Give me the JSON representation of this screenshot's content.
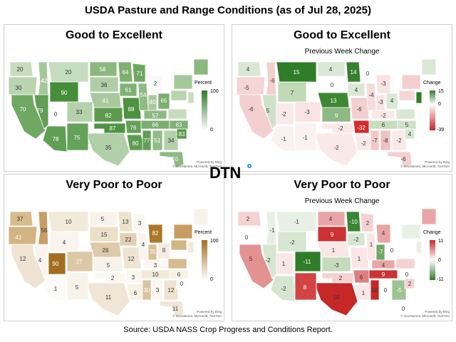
{
  "title": "USDA Pasture and Range Conditions (as of Jul 28, 2025)",
  "source": "Source:  USDA NASS Crop Progress and Conditions Report.",
  "logo": "DTN",
  "credit_line1": "Powered by Bing",
  "credit_line2": "© GeoNames, Microsoft, TomTom",
  "panels": [
    {
      "title": "Good to Excellent",
      "subtitle": "",
      "legend_title": "Percent",
      "legend_max": "100",
      "legend_min": "0",
      "scale": "green",
      "labels": [
        {
          "v": "20",
          "c": "#c6dcbf"
        },
        {
          "v": "30",
          "c": "#b9d4b1"
        },
        {
          "v": "42",
          "c": "#a5c89b"
        },
        {
          "v": "20",
          "c": "#c6dcbf"
        },
        {
          "v": "58",
          "c": "#8ab87f"
        },
        {
          "v": "70",
          "c": "#6fa863"
        },
        {
          "v": "79",
          "c": "#5f9e53"
        },
        {
          "v": "90",
          "c": "#468e3a"
        },
        {
          "v": "0",
          "c": "#ffffff"
        },
        {
          "v": "33",
          "c": "#b4d1ab"
        },
        {
          "v": "36",
          "c": "#b0cea6"
        },
        {
          "v": "41",
          "c": "#a8c99e"
        },
        {
          "v": "82",
          "c": "#5a9b4d"
        },
        {
          "v": "78",
          "c": "#5f9e53"
        },
        {
          "v": "75",
          "c": "#65a259"
        },
        {
          "v": "87",
          "c": "#4e9342"
        },
        {
          "v": "35",
          "c": "#b1cfa8"
        },
        {
          "v": "64",
          "c": "#7cb070"
        },
        {
          "v": "61",
          "c": "#80b274"
        },
        {
          "v": "88",
          "c": "#4c9240"
        },
        {
          "v": "76",
          "c": "#63a157"
        },
        {
          "v": "80",
          "c": "#5c9c50"
        },
        {
          "v": "71",
          "c": "#6ca760"
        },
        {
          "v": "54",
          "c": "#8fbb84"
        },
        {
          "v": "2",
          "c": "#f7faf6"
        },
        {
          "v": "40",
          "c": "#a9ca9f"
        },
        {
          "v": "65",
          "c": "#7aaf6e"
        },
        {
          "v": "57",
          "c": "#8bb980"
        },
        {
          "v": "66",
          "c": "#79ae6d"
        },
        {
          "v": "77",
          "c": "#62a056"
        },
        {
          "v": "51",
          "c": "#93bd88"
        },
        {
          "v": "34",
          "c": "#b3d0aa"
        },
        {
          "v": "55",
          "c": "#8dba82"
        },
        {
          "v": "63",
          "c": "#7eb172"
        },
        {
          "v": "83",
          "c": "#579a4b"
        }
      ]
    },
    {
      "title": "Good to Excellent",
      "subtitle": "Previous Week Change",
      "legend_title": "Change",
      "legend_max": "15",
      "legend_mid": "0",
      "legend_min": "-39",
      "scale": "diverge-green",
      "labels": [
        {
          "v": "4",
          "c": "#d9e8d4"
        },
        {
          "v": "-5",
          "c": "#f6d5d5"
        },
        {
          "v": "-6",
          "c": "#f4cfcf"
        },
        {
          "v": "15",
          "c": "#2f7d28"
        },
        {
          "v": "4",
          "c": "#d9e8d4"
        },
        {
          "v": "-6",
          "c": "#f4cfcf"
        },
        {
          "v": "5",
          "c": "#cfe2c9"
        },
        {
          "v": "7",
          "c": "#c0dab8"
        },
        {
          "v": "-2",
          "c": "#fae9e9"
        },
        {
          "v": "-3",
          "c": "#f9e3e3"
        },
        {
          "v": "0",
          "c": "#ffffff"
        },
        {
          "v": "13",
          "c": "#3e8833"
        },
        {
          "v": "9",
          "c": "#8db982"
        },
        {
          "v": "-1",
          "c": "#fcf1f1"
        },
        {
          "v": "-1",
          "c": "#fcf1f1"
        },
        {
          "v": "-2",
          "c": "#fae9e9"
        },
        {
          "v": "-2",
          "c": "#fae9e9"
        },
        {
          "v": "14",
          "c": "#367f2e"
        },
        {
          "v": "4",
          "c": "#d9e8d4"
        },
        {
          "v": "-6",
          "c": "#f4cfcf"
        },
        {
          "v": "-32",
          "c": "#d52c2c"
        },
        {
          "v": "-2",
          "c": "#fae9e9"
        },
        {
          "v": "0",
          "c": "#ffffff"
        },
        {
          "v": "-4",
          "c": "#f7dcdc"
        },
        {
          "v": "-3",
          "c": "#f9e3e3"
        },
        {
          "v": "-3",
          "c": "#f9e3e3"
        },
        {
          "v": "4",
          "c": "#d9e8d4"
        },
        {
          "v": "-2",
          "c": "#fae9e9"
        },
        {
          "v": "6",
          "c": "#c6ddbe"
        },
        {
          "v": "-7",
          "c": "#f2c8c8"
        },
        {
          "v": "-8",
          "c": "#f0c1c1"
        },
        {
          "v": "-2",
          "c": "#fae9e9"
        },
        {
          "v": "-6",
          "c": "#f4cfcf"
        },
        {
          "v": "5",
          "c": "#cfe2c9"
        },
        {
          "v": "4",
          "c": "#d9e8d4"
        }
      ]
    },
    {
      "title": "Very Poor to Poor",
      "subtitle": "",
      "legend_title": "Percent",
      "legend_max": "100",
      "legend_min": "0",
      "scale": "brown",
      "labels": [
        {
          "v": "37",
          "c": "#d6bb8d"
        },
        {
          "v": "41",
          "c": "#d3b484"
        },
        {
          "v": "56",
          "c": "#c69e63"
        },
        {
          "v": "10",
          "c": "#f2ead9"
        },
        {
          "v": "5",
          "c": "#f8f3ea"
        },
        {
          "v": "12",
          "c": "#efe4d1"
        },
        {
          "v": "4",
          "c": "#f9f5ee"
        },
        {
          "v": "4",
          "c": "#f9f5ee"
        },
        {
          "v": "90",
          "c": "#a46e20"
        },
        {
          "v": "27",
          "c": "#ddc8a5"
        },
        {
          "v": "15",
          "c": "#ecdfc8"
        },
        {
          "v": "26",
          "c": "#dec9a8"
        },
        {
          "v": "5",
          "c": "#f8f3ea"
        },
        {
          "v": "1",
          "c": "#fdfbf8"
        },
        {
          "v": "5",
          "c": "#f8f3ea"
        },
        {
          "v": "2",
          "c": "#fbf8f2"
        },
        {
          "v": "11",
          "c": "#f0e6d5"
        },
        {
          "v": "13",
          "c": "#ede2cd"
        },
        {
          "v": "22",
          "c": "#e2d0b2"
        },
        {
          "v": "12",
          "c": "#efe4d1"
        },
        {
          "v": "3",
          "c": "#faf6f0"
        },
        {
          "v": "6",
          "c": "#f7f1e6"
        },
        {
          "v": "3",
          "c": "#faf6f0"
        },
        {
          "v": "4",
          "c": "#f9f5ee"
        },
        {
          "v": "82",
          "c": "#aa7828"
        },
        {
          "v": "35",
          "c": "#d8bf94"
        },
        {
          "v": "8",
          "c": "#f4eddf"
        },
        {
          "v": "3",
          "c": "#faf6f0"
        },
        {
          "v": "10",
          "c": "#f2ead9"
        },
        {
          "v": "30",
          "c": "#dbc39c"
        },
        {
          "v": "3",
          "c": "#faf6f0"
        },
        {
          "v": "12",
          "c": "#efe4d1"
        },
        {
          "v": "11",
          "c": "#f0e6d5"
        },
        {
          "v": "6",
          "c": "#f7f1e6"
        },
        {
          "v": "0",
          "c": "#ffffff"
        }
      ]
    },
    {
      "title": "Very Poor to Poor",
      "subtitle": "Previous Week Change",
      "legend_title": "Change",
      "legend_max": "11",
      "legend_mid": "0",
      "legend_min": "-11",
      "scale": "diverge-red",
      "labels": [
        {
          "v": "2",
          "c": "#f4d2d2"
        },
        {
          "v": "0",
          "c": "#ffffff"
        },
        {
          "v": "-1",
          "c": "#e8f0e5"
        },
        {
          "v": "-1",
          "c": "#e8f0e5"
        },
        {
          "v": "4",
          "c": "#e9a5a5"
        },
        {
          "v": "5",
          "c": "#e39292"
        },
        {
          "v": "-2",
          "c": "#d6e6d1"
        },
        {
          "v": "-2",
          "c": "#d6e6d1"
        },
        {
          "v": "1",
          "c": "#f9e6e6"
        },
        {
          "v": "-11",
          "c": "#2f7d28"
        },
        {
          "v": "9",
          "c": "#cc3333"
        },
        {
          "v": "1",
          "c": "#f9e6e6"
        },
        {
          "v": "-3",
          "c": "#c4dbbd"
        },
        {
          "v": "-2",
          "c": "#d6e6d1"
        },
        {
          "v": "8",
          "c": "#d24444"
        },
        {
          "v": "2",
          "c": "#f4d2d2"
        },
        {
          "v": "10",
          "c": "#c62828"
        },
        {
          "v": "-10",
          "c": "#3a8530"
        },
        {
          "v": "-2",
          "c": "#d6e6d1"
        },
        {
          "v": "1",
          "c": "#f9e6e6"
        },
        {
          "v": "6",
          "c": "#de7f7f"
        },
        {
          "v": "1",
          "c": "#f9e6e6"
        },
        {
          "v": "2",
          "c": "#f4d2d2"
        },
        {
          "v": "1",
          "c": "#f9e6e6"
        },
        {
          "v": "4",
          "c": "#e9a5a5"
        },
        {
          "v": "-7",
          "c": "#72a866"
        },
        {
          "v": "0",
          "c": "#ffffff"
        },
        {
          "v": "4",
          "c": "#e9a5a5"
        },
        {
          "v": "9",
          "c": "#cc3333"
        },
        {
          "v": "10",
          "c": "#c62828"
        },
        {
          "v": "0",
          "c": "#ffffff"
        },
        {
          "v": "-5",
          "c": "#9dc393"
        },
        {
          "v": "0",
          "c": "#ffffff"
        },
        {
          "v": "0",
          "c": "#ffffff"
        },
        {
          "v": "2",
          "c": "#f4d2d2"
        }
      ]
    }
  ]
}
